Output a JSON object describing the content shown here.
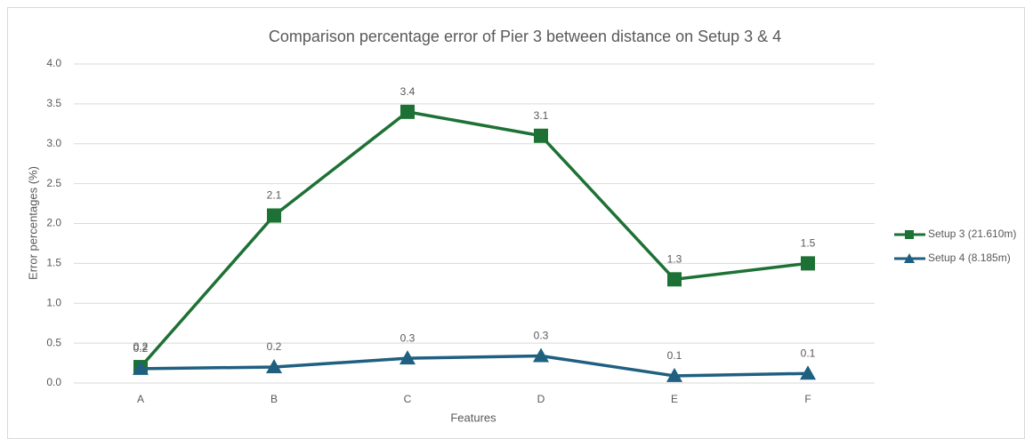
{
  "chart_data": {
    "type": "line",
    "title": "Comparison percentage error of Pier 3 between distance on Setup  3 & 4",
    "x_label": "Features",
    "y_label": "Error percentages (%)",
    "categories": [
      "A",
      "B",
      "C",
      "D",
      "E",
      "F"
    ],
    "series": [
      {
        "name": "Setup 3 (21.610m)",
        "color": "#1e7135",
        "marker": "square",
        "values": [
          0.2,
          2.1,
          3.4,
          3.1,
          1.3,
          1.5
        ]
      },
      {
        "name": "Setup 4 (8.185m)",
        "color": "#1f5f80",
        "marker": "triangle",
        "values": [
          0.18,
          0.2,
          0.31,
          0.34,
          0.09,
          0.12
        ],
        "value_labels": [
          "0.2",
          "0.2",
          "0.3",
          "0.3",
          "0.1",
          "0.1"
        ]
      }
    ],
    "ylim": [
      0,
      4
    ],
    "yticks": [
      {
        "value": 0,
        "label": "0.0"
      },
      0.5,
      {
        "value": 1,
        "label": "1.0"
      },
      1.5,
      {
        "value": 2,
        "label": "2.0"
      },
      2.5,
      {
        "value": 3,
        "label": "3.0"
      },
      3.5,
      {
        "value": 4,
        "label": "4.0"
      }
    ],
    "grid": true,
    "legend": "right"
  }
}
